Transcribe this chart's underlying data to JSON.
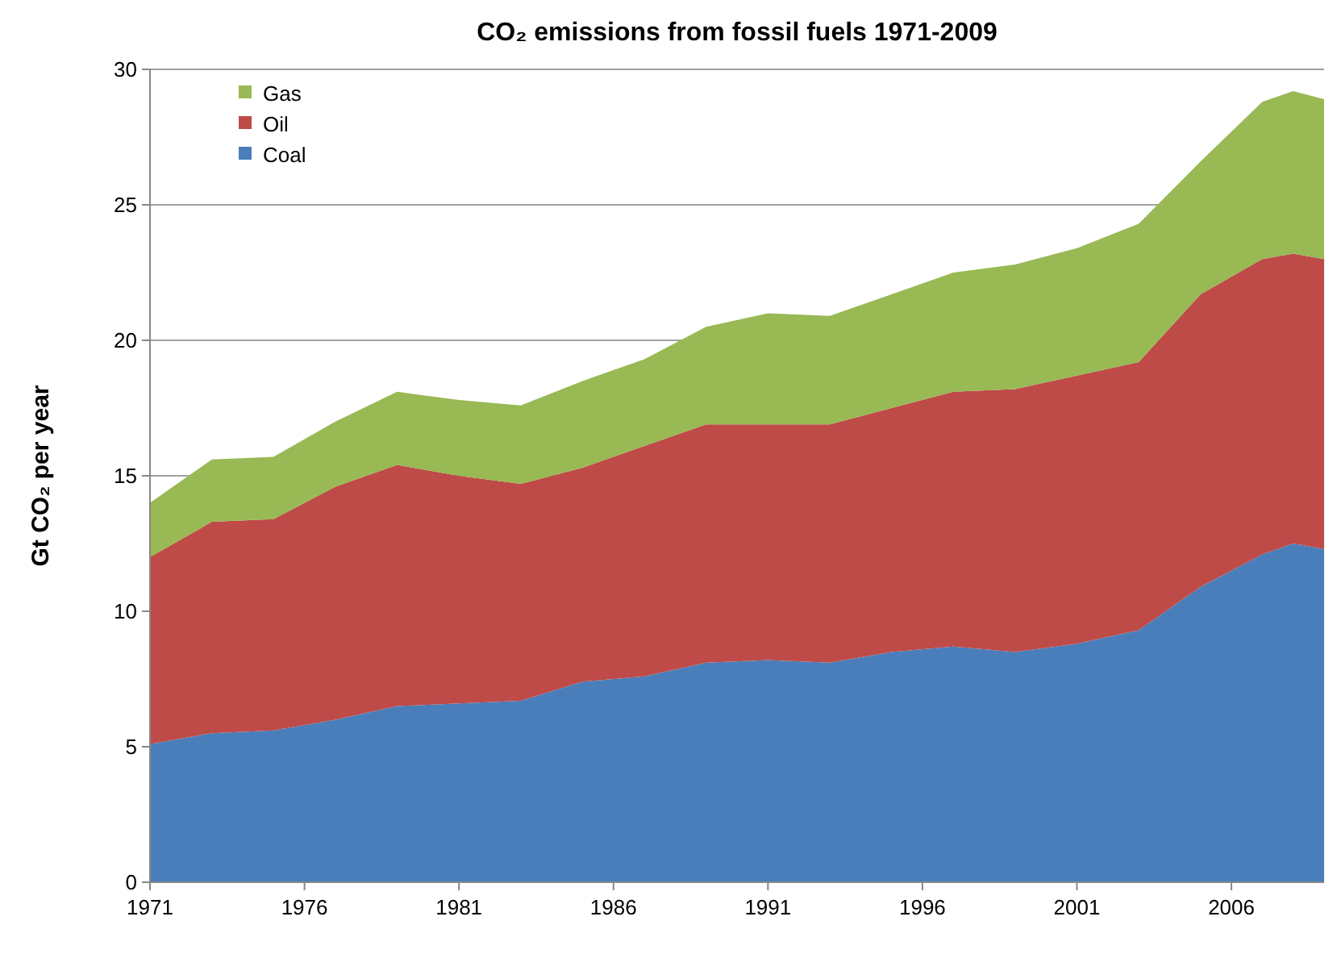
{
  "chart_data": {
    "type": "area",
    "title": "CO₂ emissions from fossil fuels 1971-2009",
    "ylabel": "Gt CO₂ per year",
    "stacked": true,
    "grid": "y",
    "legend": "top left",
    "x": [
      1971,
      1973,
      1975,
      1977,
      1979,
      1981,
      1983,
      1985,
      1987,
      1989,
      1991,
      1993,
      1995,
      1997,
      1999,
      2001,
      2003,
      2005,
      2007,
      2008,
      2009
    ],
    "xlim": [
      1971,
      2009
    ],
    "xticks": [
      1971,
      1976,
      1981,
      1986,
      1991,
      1996,
      2001,
      2006
    ],
    "ylim": [
      0,
      30
    ],
    "yticks": [
      0,
      5,
      10,
      15,
      20,
      25,
      30
    ],
    "series": [
      {
        "name": "Coal",
        "color": "#4a7ebb",
        "values": [
          5.1,
          5.5,
          5.6,
          6.0,
          6.5,
          6.6,
          6.7,
          7.4,
          7.6,
          8.1,
          8.2,
          8.1,
          8.5,
          8.7,
          8.5,
          8.8,
          9.3,
          10.9,
          12.1,
          12.5,
          12.3
        ]
      },
      {
        "name": "Oil",
        "color": "#be4b48",
        "values": [
          6.9,
          7.8,
          7.8,
          8.6,
          8.9,
          8.4,
          8.0,
          7.9,
          8.5,
          8.8,
          8.7,
          8.8,
          9.0,
          9.4,
          9.7,
          9.9,
          9.9,
          10.8,
          10.9,
          10.7,
          10.7
        ]
      },
      {
        "name": "Gas",
        "color": "#98b954",
        "values": [
          2.0,
          2.3,
          2.3,
          2.4,
          2.7,
          2.8,
          2.9,
          3.2,
          3.2,
          3.6,
          4.1,
          4.0,
          4.2,
          4.4,
          4.6,
          4.7,
          5.1,
          4.9,
          5.8,
          6.0,
          5.9
        ]
      }
    ]
  }
}
